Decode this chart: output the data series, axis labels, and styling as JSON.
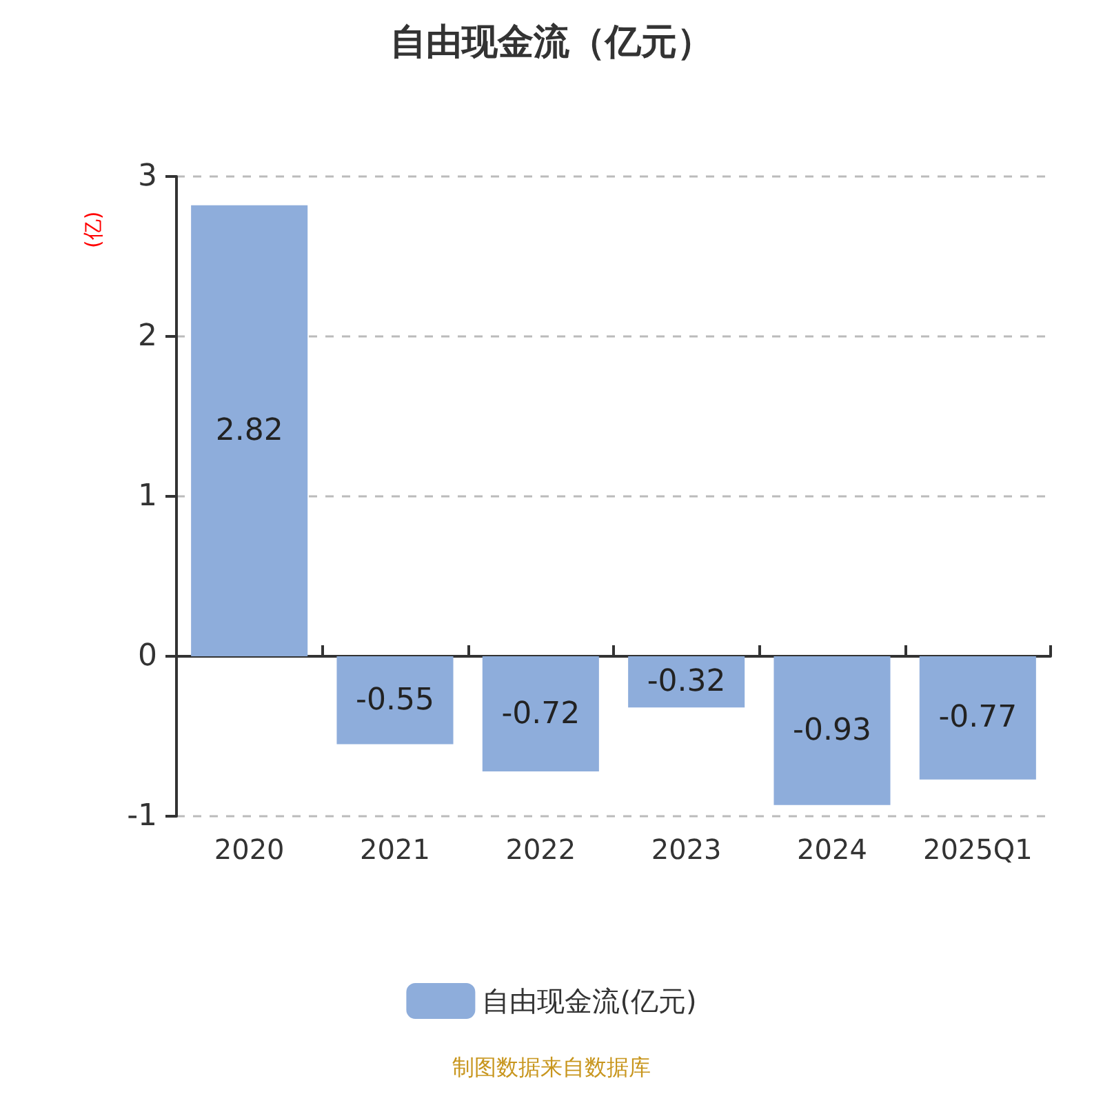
{
  "chart_data": {
    "type": "bar",
    "title": "自由现金流（亿元）",
    "ylabel": "(亿)",
    "categories": [
      "2020",
      "2021",
      "2022",
      "2023",
      "2024",
      "2025Q1"
    ],
    "series": [
      {
        "name": "自由现金流(亿元)",
        "color": "#8eaddb",
        "values": [
          2.82,
          -0.55,
          -0.72,
          -0.32,
          -0.93,
          -0.77
        ]
      }
    ],
    "ylim": [
      -1,
      3
    ],
    "yticks": [
      -1,
      0,
      1,
      2,
      3
    ],
    "grid": "y",
    "legend": "bottom",
    "data_labels": true,
    "annotations": [
      "制图数据来自数据库"
    ]
  }
}
